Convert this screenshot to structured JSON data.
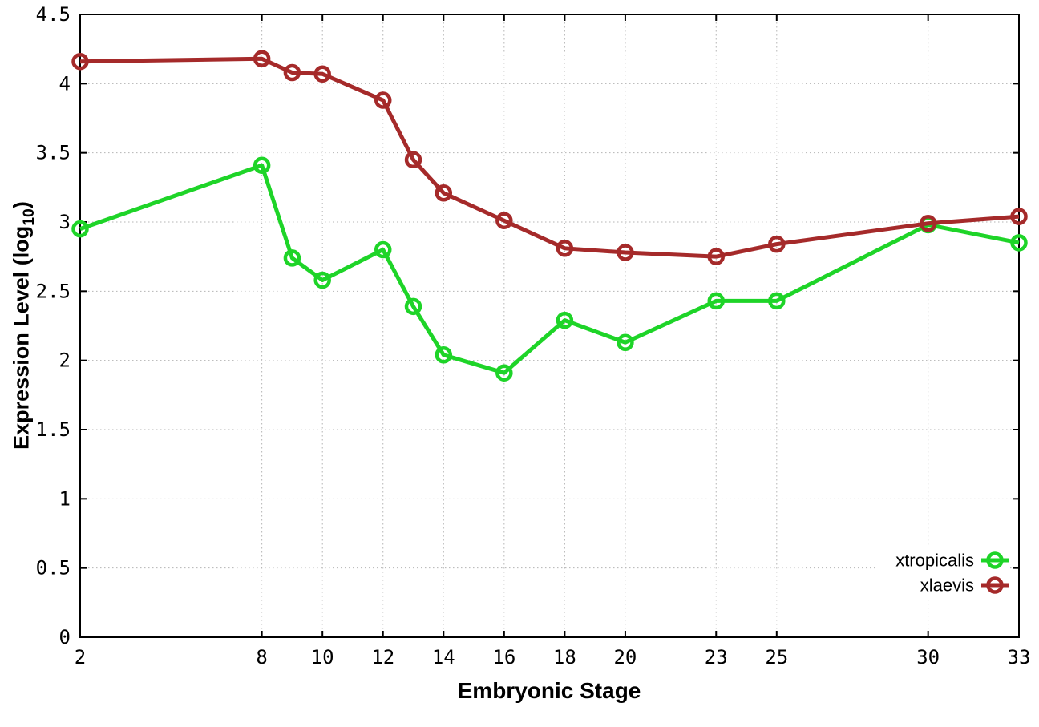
{
  "chart_data": {
    "type": "line",
    "title": "",
    "xlabel": "Embryonic Stage",
    "ylabel": "Expression Level (log10)",
    "ylabel_parts": {
      "prefix": "Expression Level (log",
      "sub": "10",
      "suffix": ")"
    },
    "x": [
      2,
      8,
      9,
      10,
      12,
      13,
      14,
      16,
      18,
      20,
      23,
      25,
      30,
      33
    ],
    "series": [
      {
        "name": "xtropicalis",
        "color": "#1ed428",
        "values": [
          2.95,
          3.41,
          2.74,
          2.58,
          2.8,
          2.39,
          2.04,
          1.91,
          2.29,
          2.13,
          2.43,
          2.43,
          2.98,
          2.85
        ]
      },
      {
        "name": "xlaevis",
        "color": "#a52a2a",
        "values": [
          4.16,
          4.18,
          4.08,
          4.07,
          3.88,
          3.45,
          3.21,
          3.01,
          2.81,
          2.78,
          2.75,
          2.84,
          2.99,
          3.04
        ]
      }
    ],
    "xlim": [
      2,
      33
    ],
    "ylim": [
      0,
      4.5
    ],
    "xticks": [
      2,
      8,
      10,
      12,
      14,
      16,
      18,
      20,
      23,
      25,
      30,
      33
    ],
    "yticks": [
      0,
      0.5,
      1,
      1.5,
      2,
      2.5,
      3,
      3.5,
      4,
      4.5
    ],
    "grid": true,
    "legend_position": "bottom-right"
  }
}
